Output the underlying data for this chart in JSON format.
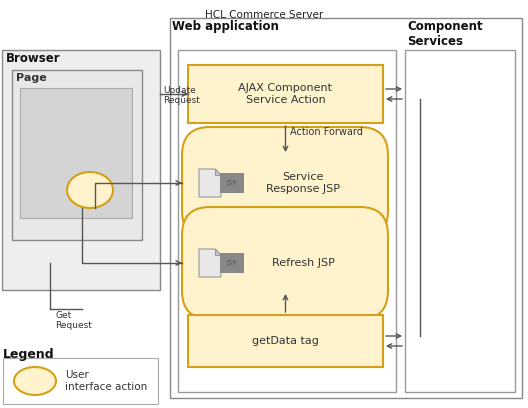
{
  "title": "HCL Commerce Server",
  "bg_color": "#ffffff",
  "yellow_fill": "#fff3cd",
  "yellow_stroke": "#d4a017",
  "gray_fill": "#e8e8e8",
  "page_fill": "#d8d8d8",
  "white": "#ffffff",
  "border_gray": "#999999",
  "text_dark": "#222222",
  "text_med": "#444444",
  "arrow_color": "#555555",
  "browser_label": "Browser",
  "page_label": "Page",
  "webapp_label": "Web application",
  "comp_label": "Component\nServices",
  "ajax_label": "AJAX Component\nService Action",
  "srjsp_label": "Service\nResponse JSP",
  "rjsp_label": "Refresh JSP",
  "gdt_label": "getData tag",
  "update_label": "Update\nRequest",
  "get_label": "Get\nRequest",
  "fwd_label": "Action Forward",
  "legend_label": "Legend",
  "legend_item": "User\ninterface action"
}
